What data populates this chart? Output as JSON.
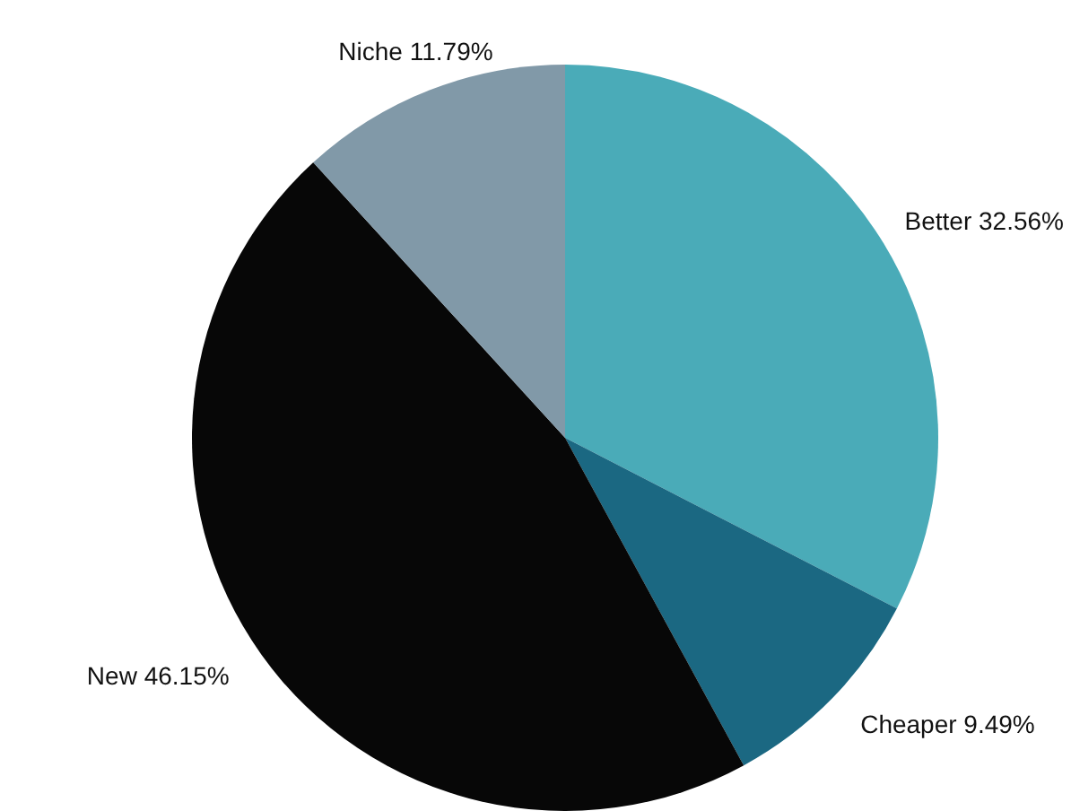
{
  "chart_data": {
    "type": "pie",
    "categories": [
      "Better",
      "Cheaper",
      "New",
      "Niche"
    ],
    "values": [
      32.56,
      9.49,
      46.15,
      11.79
    ],
    "value_labels": [
      "32.56%",
      "9.49%",
      "46.15%",
      "11.79%"
    ],
    "colors": [
      "#4aabb8",
      "#1b6882",
      "#070707",
      "#8199a8"
    ],
    "legend": false
  }
}
